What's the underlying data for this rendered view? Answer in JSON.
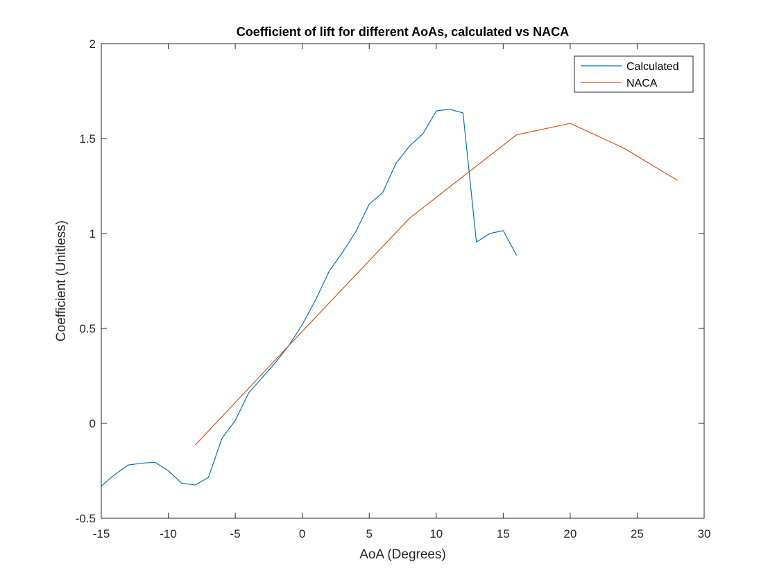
{
  "chart_data": {
    "type": "line",
    "title": "Coefficient of lift for different AoAs, calculated vs NACA",
    "xlabel": "AoA (Degrees)",
    "ylabel": "Coefficient (Unitless)",
    "xlim": [
      -15,
      30
    ],
    "ylim": [
      -0.5,
      2
    ],
    "xticks": [
      -15,
      -10,
      -5,
      0,
      5,
      10,
      15,
      20,
      25,
      30
    ],
    "yticks": [
      -0.5,
      0,
      0.5,
      1,
      1.5,
      2
    ],
    "xtick_labels": [
      "-15",
      "-10",
      "-5",
      "0",
      "5",
      "10",
      "15",
      "20",
      "25",
      "30"
    ],
    "ytick_labels": [
      "-0.5",
      "0",
      "0.5",
      "1",
      "1.5",
      "2"
    ],
    "grid": false,
    "legend_position": "top-right",
    "series": [
      {
        "name": "Calculated",
        "color": "#0072bd",
        "x": [
          -15,
          -14,
          -13,
          -12,
          -11,
          -10,
          -9,
          -8,
          -7,
          -6,
          -5,
          -4,
          -3,
          -2,
          -1,
          0,
          1,
          2,
          3,
          4,
          5,
          6,
          7,
          8,
          9,
          10,
          11,
          12,
          13,
          14,
          15,
          16
        ],
        "y": [
          -0.33,
          -0.27,
          -0.22,
          -0.21,
          -0.205,
          -0.25,
          -0.315,
          -0.325,
          -0.285,
          -0.08,
          0.015,
          0.16,
          0.24,
          0.32,
          0.41,
          0.52,
          0.65,
          0.8,
          0.9,
          1.01,
          1.155,
          1.215,
          1.37,
          1.46,
          1.525,
          1.645,
          1.655,
          1.635,
          0.955,
          1.0,
          1.015,
          0.885
        ]
      },
      {
        "name": "NACA",
        "color": "#d95319",
        "x": [
          -8,
          -1,
          8,
          16,
          20,
          24,
          28
        ],
        "y": [
          -0.115,
          0.41,
          1.08,
          1.52,
          1.58,
          1.45,
          1.28
        ]
      }
    ]
  }
}
